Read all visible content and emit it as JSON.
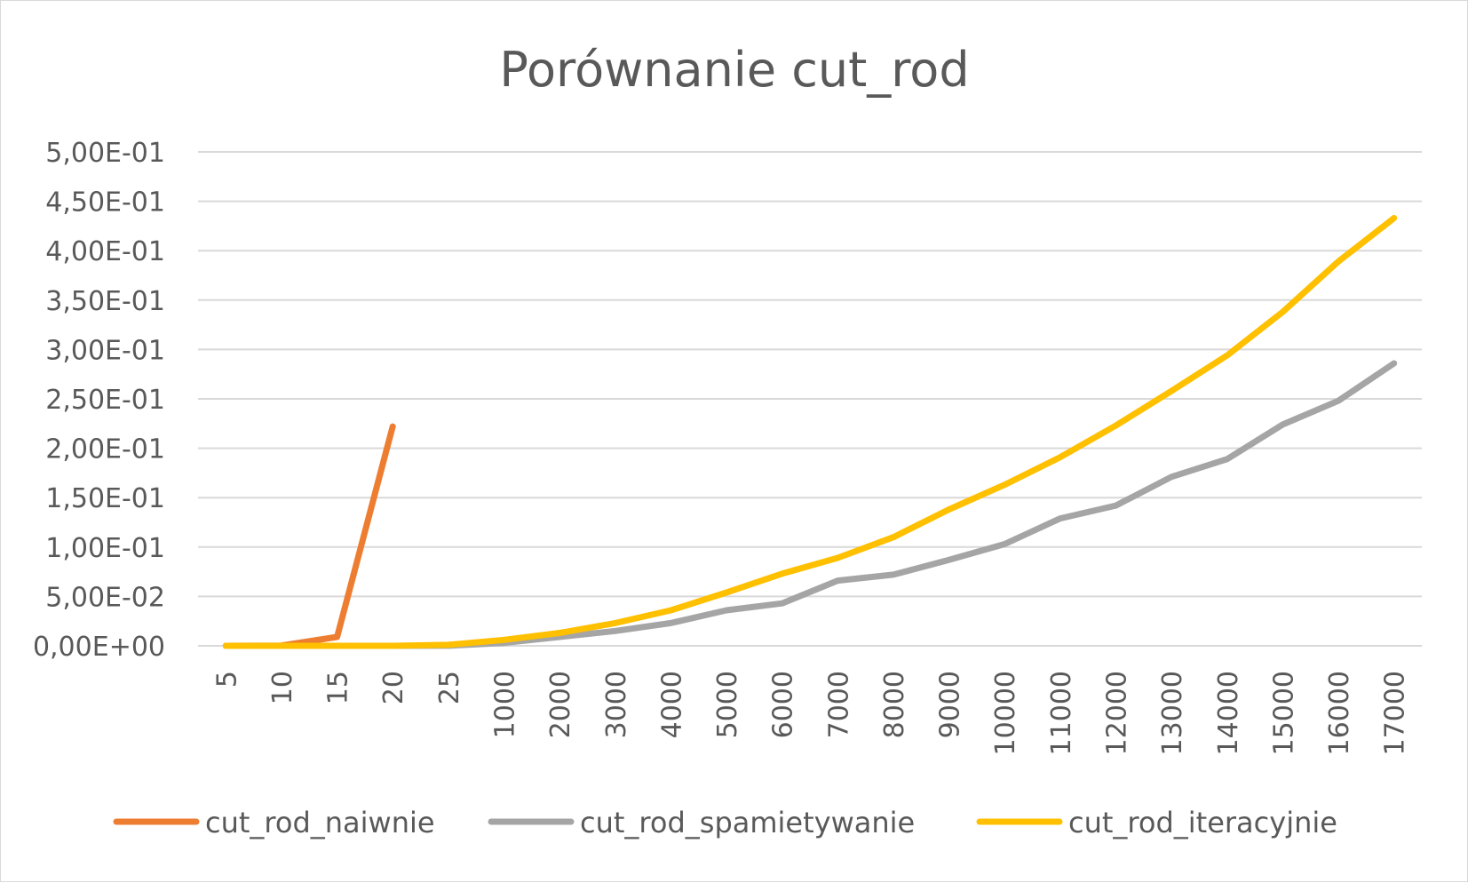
{
  "chart_data": {
    "type": "line",
    "title": "Porównanie cut_rod",
    "xlabel": "",
    "ylabel": "",
    "categories": [
      "5",
      "10",
      "15",
      "20",
      "25",
      "1000",
      "2000",
      "3000",
      "4000",
      "5000",
      "6000",
      "7000",
      "8000",
      "9000",
      "10000",
      "11000",
      "12000",
      "13000",
      "14000",
      "15000",
      "16000",
      "17000"
    ],
    "ylim": [
      0,
      0.5
    ],
    "y_ticks": [
      {
        "value": 0,
        "label": "0,00E+00"
      },
      {
        "value": 0.05,
        "label": "5,00E-02"
      },
      {
        "value": 0.1,
        "label": "1,00E-01"
      },
      {
        "value": 0.15,
        "label": "1,50E-01"
      },
      {
        "value": 0.2,
        "label": "2,00E-01"
      },
      {
        "value": 0.25,
        "label": "2,50E-01"
      },
      {
        "value": 0.3,
        "label": "3,00E-01"
      },
      {
        "value": 0.35,
        "label": "3,50E-01"
      },
      {
        "value": 0.4,
        "label": "4,00E-01"
      },
      {
        "value": 0.45,
        "label": "4,50E-01"
      },
      {
        "value": 0.5,
        "label": "5,00E-01"
      }
    ],
    "grid": true,
    "legend_position": "bottom",
    "series": [
      {
        "name": "cut_rod_naiwnie",
        "color": "#ED7D31",
        "values": [
          1e-05,
          0.0003,
          0.009,
          0.222,
          null,
          null,
          null,
          null,
          null,
          null,
          null,
          null,
          null,
          null,
          null,
          null,
          null,
          null,
          null,
          null,
          null,
          null
        ]
      },
      {
        "name": "cut_rod_spamietywanie",
        "color": "#A5A5A5",
        "values": [
          0.0,
          0.0,
          0.0,
          0.0,
          0.0001,
          0.003,
          0.009,
          0.015,
          0.023,
          0.036,
          0.043,
          0.066,
          0.072,
          0.087,
          0.103,
          0.129,
          0.142,
          0.171,
          0.189,
          0.224,
          0.248,
          0.286
        ]
      },
      {
        "name": "cut_rod_iteracyjnie",
        "color": "#FFC000",
        "values": [
          0.0,
          0.0,
          0.0,
          0.0,
          0.001,
          0.006,
          0.013,
          0.023,
          0.036,
          0.054,
          0.073,
          0.089,
          0.11,
          0.138,
          0.163,
          0.191,
          0.223,
          0.258,
          0.294,
          0.338,
          0.389,
          0.433
        ]
      }
    ]
  }
}
